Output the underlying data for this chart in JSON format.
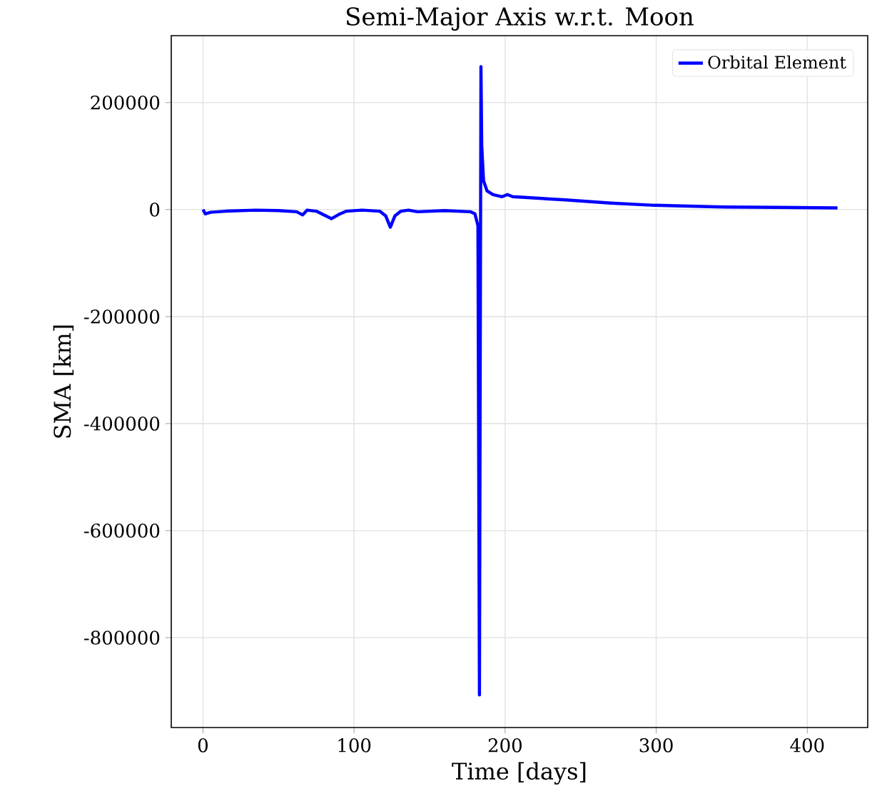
{
  "chart_data": {
    "type": "line",
    "title": "Semi-Major Axis w.r.t. Moon",
    "xlabel": "Time [days]",
    "ylabel": "SMA [km]",
    "x": [
      0,
      1.5,
      5,
      15,
      35,
      50,
      62,
      66,
      69,
      75,
      80,
      85,
      90,
      95,
      105,
      117,
      121,
      124,
      127,
      131,
      136,
      142,
      160,
      177,
      180,
      182,
      183,
      183.5,
      184,
      184.5,
      185.7,
      188,
      192,
      198,
      201.5,
      205,
      211,
      240,
      270,
      299,
      340,
      380,
      420
    ],
    "series": [
      {
        "name": "Orbital Element",
        "color": "#0000ff",
        "values": [
          0,
          -8000,
          -5000,
          -3000,
          -1000,
          -2000,
          -4000,
          -10000,
          -1000,
          -3000,
          -10000,
          -17000,
          -9000,
          -3000,
          -1000,
          -3000,
          -12000,
          -33000,
          -12000,
          -3000,
          -1000,
          -4000,
          -2000,
          -4000,
          -8000,
          -30000,
          -907000,
          -300000,
          267000,
          120000,
          54000,
          35000,
          28000,
          24000,
          28000,
          24000,
          23000,
          18000,
          12000,
          8000,
          5000,
          4000,
          3000
        ]
      }
    ],
    "xlim": [
      -21,
      440
    ],
    "ylim": [
      -968000,
      325000
    ],
    "xticks": [
      0,
      100,
      200,
      300,
      400
    ],
    "yticks": [
      -800000,
      -600000,
      -400000,
      -200000,
      0,
      200000
    ],
    "grid": true,
    "legend": "top right",
    "marker": "none",
    "line_style": "solid"
  }
}
